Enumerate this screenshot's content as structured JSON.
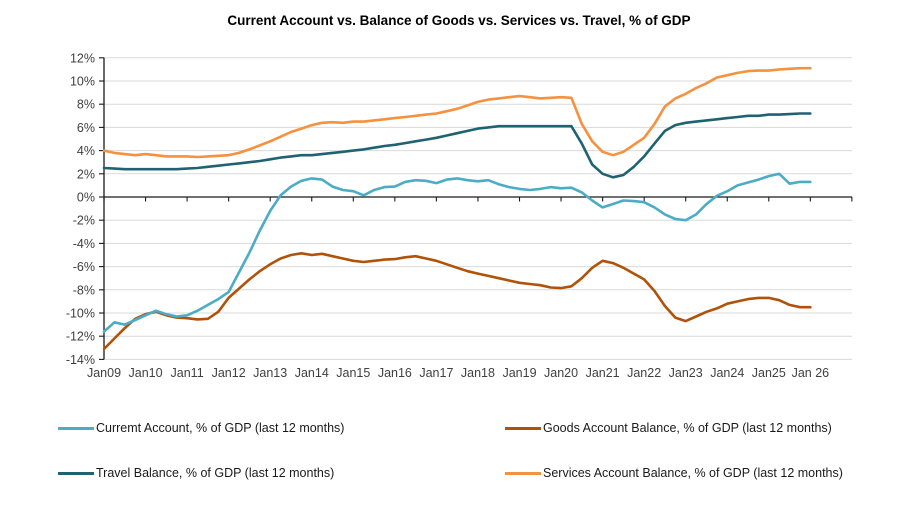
{
  "title": "Current Account vs. Balance of Goods vs. Services vs. Travel, % of GDP",
  "chart_data": {
    "type": "line",
    "title": "Current Account vs. Balance of Goods vs. Services vs. Travel, % of GDP",
    "grid": true,
    "legend_position": "bottom",
    "ylim": [
      -14,
      12
    ],
    "y_step": 2,
    "y_tick_labels": [
      "12%",
      "10%",
      "8%",
      "6%",
      "4%",
      "2%",
      "0%",
      "-2%",
      "-4%",
      "-6%",
      "-8%",
      "-10%",
      "-12%",
      "-14%"
    ],
    "x_tick_labels": [
      "Jan09",
      "Jan10",
      "Jan11",
      "Jan12",
      "Jan13",
      "Jan14",
      "Jan15",
      "Jan16",
      "Jan17",
      "Jan18",
      "Jan19",
      "Jan20",
      "Jan21",
      "Jan22",
      "Jan23",
      "Jan24",
      "Jan25",
      "Jan 26"
    ],
    "axis_color": "#1a1a1a",
    "gridline_color": "#d9d9d9",
    "tick_label_color": "#404040",
    "x": [
      2009,
      2009.25,
      2009.5,
      2009.75,
      2010,
      2010.25,
      2010.5,
      2010.75,
      2011,
      2011.25,
      2011.5,
      2011.75,
      2012,
      2012.25,
      2012.5,
      2012.75,
      2013,
      2013.25,
      2013.5,
      2013.75,
      2014,
      2014.25,
      2014.5,
      2014.75,
      2015,
      2015.25,
      2015.5,
      2015.75,
      2016,
      2016.25,
      2016.5,
      2016.75,
      2017,
      2017.25,
      2017.5,
      2017.75,
      2018,
      2018.25,
      2018.5,
      2018.75,
      2019,
      2019.25,
      2019.5,
      2019.75,
      2020,
      2020.25,
      2020.5,
      2020.75,
      2021,
      2021.25,
      2021.5,
      2021.75,
      2022,
      2022.25,
      2022.5,
      2022.75,
      2023,
      2023.25,
      2023.5,
      2023.75,
      2024,
      2024.25,
      2024.5,
      2024.75,
      2025,
      2025.25,
      2025.5,
      2025.75,
      2026
    ],
    "series": [
      {
        "name": "Curremt Account,  % of GDP (last 12 months)",
        "color": "#4BACC6",
        "values": [
          -11.6,
          -10.8,
          -11.0,
          -10.6,
          -10.2,
          -9.8,
          -10.1,
          -10.3,
          -10.2,
          -9.8,
          -9.3,
          -8.8,
          -8.2,
          -6.5,
          -4.8,
          -2.9,
          -1.2,
          0.15,
          0.9,
          1.4,
          1.6,
          1.5,
          0.9,
          0.6,
          0.5,
          0.15,
          0.6,
          0.85,
          0.9,
          1.3,
          1.45,
          1.4,
          1.2,
          1.5,
          1.6,
          1.45,
          1.35,
          1.45,
          1.1,
          0.85,
          0.7,
          0.6,
          0.7,
          0.85,
          0.75,
          0.8,
          0.4,
          -0.3,
          -0.9,
          -0.6,
          -0.3,
          -0.35,
          -0.45,
          -0.9,
          -1.5,
          -1.9,
          -2.0,
          -1.5,
          -0.6,
          0.1,
          0.5,
          1.0,
          1.25,
          1.5,
          1.8,
          2.0,
          1.15,
          1.3,
          1.3
        ]
      },
      {
        "name": "Goods Account Balance,  % of GDP (last 12 months)",
        "color": "#B05309",
        "values": [
          -13.1,
          -12.2,
          -11.3,
          -10.5,
          -10.1,
          -9.9,
          -10.2,
          -10.4,
          -10.45,
          -10.55,
          -10.5,
          -9.9,
          -8.7,
          -7.9,
          -7.1,
          -6.4,
          -5.8,
          -5.3,
          -5.0,
          -4.85,
          -5.0,
          -4.9,
          -5.1,
          -5.3,
          -5.5,
          -5.6,
          -5.5,
          -5.4,
          -5.35,
          -5.2,
          -5.1,
          -5.3,
          -5.5,
          -5.8,
          -6.1,
          -6.4,
          -6.6,
          -6.8,
          -7.0,
          -7.2,
          -7.4,
          -7.5,
          -7.6,
          -7.8,
          -7.85,
          -7.7,
          -7.0,
          -6.1,
          -5.5,
          -5.7,
          -6.1,
          -6.6,
          -7.1,
          -8.1,
          -9.4,
          -10.4,
          -10.7,
          -10.3,
          -9.9,
          -9.6,
          -9.2,
          -9.0,
          -8.8,
          -8.7,
          -8.7,
          -8.9,
          -9.3,
          -9.5,
          -9.5
        ]
      },
      {
        "name": "Travel Balance,  % of GDP (last 12 months)",
        "color": "#1F6373",
        "values": [
          2.5,
          2.45,
          2.4,
          2.4,
          2.4,
          2.4,
          2.4,
          2.4,
          2.45,
          2.5,
          2.6,
          2.7,
          2.8,
          2.9,
          3.0,
          3.1,
          3.25,
          3.4,
          3.5,
          3.6,
          3.6,
          3.7,
          3.8,
          3.9,
          4.0,
          4.1,
          4.25,
          4.4,
          4.5,
          4.65,
          4.8,
          4.95,
          5.1,
          5.3,
          5.5,
          5.7,
          5.9,
          6.0,
          6.1,
          6.1,
          6.1,
          6.1,
          6.1,
          6.1,
          6.1,
          6.1,
          4.6,
          2.8,
          2.0,
          1.7,
          1.9,
          2.6,
          3.5,
          4.6,
          5.7,
          6.2,
          6.4,
          6.5,
          6.6,
          6.7,
          6.8,
          6.9,
          7.0,
          7.0,
          7.1,
          7.1,
          7.15,
          7.2,
          7.2
        ]
      },
      {
        "name": "Services Account Balance,  % of GDP (last 12 months)",
        "color": "#F6913E",
        "values": [
          4.0,
          3.8,
          3.7,
          3.6,
          3.7,
          3.6,
          3.5,
          3.5,
          3.5,
          3.45,
          3.5,
          3.55,
          3.6,
          3.8,
          4.1,
          4.45,
          4.8,
          5.2,
          5.6,
          5.9,
          6.2,
          6.4,
          6.45,
          6.4,
          6.5,
          6.5,
          6.6,
          6.7,
          6.8,
          6.9,
          7.0,
          7.1,
          7.2,
          7.4,
          7.6,
          7.9,
          8.2,
          8.4,
          8.5,
          8.6,
          8.7,
          8.6,
          8.5,
          8.55,
          8.6,
          8.55,
          6.3,
          4.8,
          3.9,
          3.6,
          3.9,
          4.5,
          5.1,
          6.3,
          7.8,
          8.5,
          8.9,
          9.4,
          9.8,
          10.3,
          10.5,
          10.7,
          10.85,
          10.9,
          10.9,
          11.0,
          11.05,
          11.1,
          11.1
        ]
      }
    ]
  }
}
